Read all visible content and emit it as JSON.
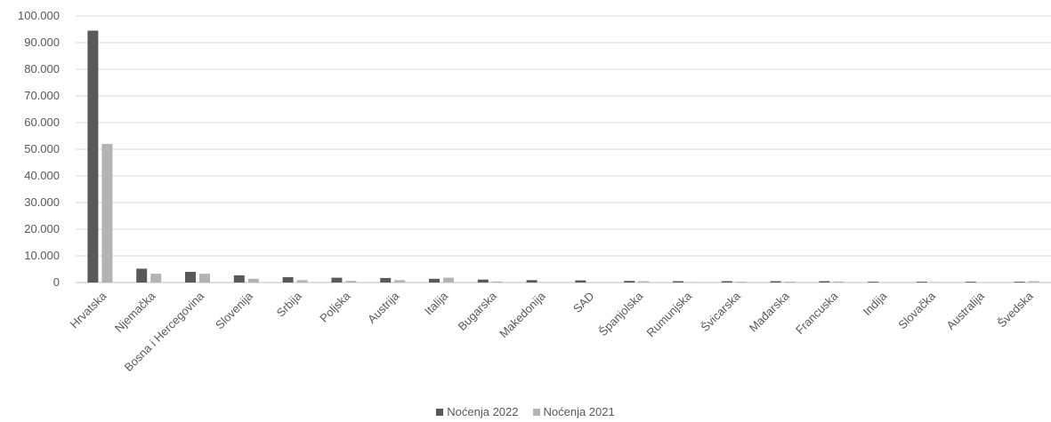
{
  "chart_data": {
    "type": "bar",
    "categories": [
      "Hrvatska",
      "Njemačka",
      "Bosna i Hercegovina",
      "Slovenija",
      "Srbija",
      "Poljska",
      "Austrija",
      "Italija",
      "Bugarska",
      "Makedonija",
      "SAD",
      "Španjolska",
      "Rumunjska",
      "Švicarska",
      "Mađarska",
      "Francuska",
      "Indija",
      "Slovačka",
      "Australija",
      "Švedska"
    ],
    "series": [
      {
        "name": "Noćenja 2022",
        "color": "#595959",
        "values": [
          94500,
          5200,
          4000,
          2700,
          2000,
          1800,
          1700,
          1400,
          1100,
          900,
          800,
          600,
          500,
          500,
          500,
          500,
          300,
          300,
          300,
          300
        ]
      },
      {
        "name": "Noćenja 2021",
        "color": "#b3b3b3",
        "values": [
          52000,
          3300,
          3300,
          1400,
          900,
          600,
          900,
          1800,
          400,
          100,
          100,
          500,
          200,
          300,
          300,
          400,
          100,
          200,
          100,
          500
        ]
      }
    ],
    "yticks": [
      "100.000",
      "90.000",
      "80.000",
      "70.000",
      "60.000",
      "50.000",
      "40.000",
      "30.000",
      "20.000",
      "10.000",
      "0"
    ],
    "ylim": [
      0,
      100000
    ],
    "grid": true,
    "legend_position": "bottom"
  }
}
